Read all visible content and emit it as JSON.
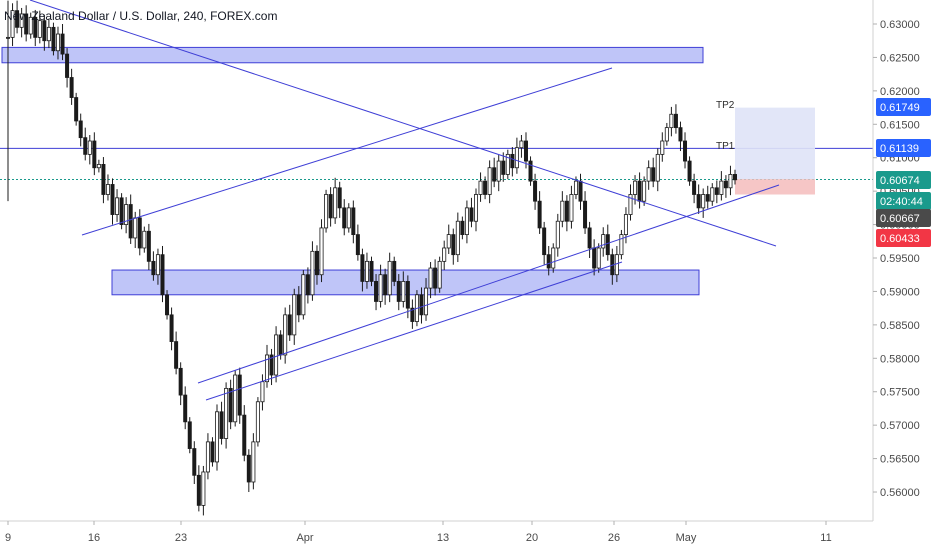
{
  "header": {
    "title": "New Zealand Dollar / U.S. Dollar, 240, FOREX.com"
  },
  "colors": {
    "up": "#1b1b1b",
    "down": "#1b1b1b",
    "trendline": "#3f3fd6",
    "zone_fill": "#a9b2f5",
    "zone_border": "#3f3fd6",
    "tp_fill": "#dfe3f7",
    "sl_fill": "#f5c0c0",
    "price_tag_blue": "#2962ff",
    "price_tag_dark": "#4a4a4a",
    "price_tag_red": "#f23645",
    "current_price_line": "#1a9a8c"
  },
  "chart_data": {
    "type": "candlestick",
    "title": "New Zealand Dollar / U.S. Dollar, 240, FOREX.com",
    "ylim": [
      0.5545,
      0.6342
    ],
    "y_ticks": [
      "0.63000",
      "0.62500",
      "0.62000",
      "0.61500",
      "0.61000",
      "0.60500",
      "0.60000",
      "0.59500",
      "0.59000",
      "0.58500",
      "0.58000",
      "0.57500",
      "0.57000",
      "0.56500",
      "0.56000"
    ],
    "x_ticks": [
      "9",
      "16",
      "23",
      "Apr",
      "13",
      "20",
      "26",
      "May",
      "11"
    ],
    "price_tags": [
      {
        "text": "0.61749",
        "value": 0.61749,
        "style": "blue"
      },
      {
        "text": "0.61139",
        "value": 0.61139,
        "style": "blue"
      },
      {
        "text": "0.60674",
        "value": 0.60674,
        "style": "teal"
      },
      {
        "text": "02:40:44",
        "value": 0.6041,
        "style": "teal"
      },
      {
        "text": "0.60667",
        "value": 0.60667,
        "style": "dark"
      },
      {
        "text": "0.60433",
        "value": 0.60433,
        "style": "red"
      }
    ],
    "annotations": [
      {
        "text": "TP2",
        "value": 0.6173
      },
      {
        "text": "TP1",
        "value": 0.6114
      }
    ],
    "closes": [
      0.628,
      0.632,
      0.6295,
      0.6315,
      0.6285,
      0.631,
      0.628,
      0.6305,
      0.6275,
      0.6295,
      0.626,
      0.6285,
      0.6255,
      0.622,
      0.619,
      0.6155,
      0.613,
      0.6105,
      0.6125,
      0.6085,
      0.609,
      0.6045,
      0.606,
      0.6015,
      0.604,
      0.6,
      0.603,
      0.598,
      0.601,
      0.5965,
      0.599,
      0.5945,
      0.5925,
      0.5955,
      0.5895,
      0.5865,
      0.5825,
      0.5785,
      0.5745,
      0.5705,
      0.5665,
      0.5625,
      0.558,
      0.563,
      0.5675,
      0.5645,
      0.572,
      0.568,
      0.5755,
      0.5705,
      0.5775,
      0.5715,
      0.5655,
      0.5615,
      0.5675,
      0.5735,
      0.5765,
      0.5805,
      0.5775,
      0.5835,
      0.5805,
      0.5865,
      0.5835,
      0.5895,
      0.5865,
      0.5925,
      0.5895,
      0.596,
      0.5925,
      0.5995,
      0.6045,
      0.601,
      0.6055,
      0.6025,
      0.5995,
      0.6025,
      0.5985,
      0.5955,
      0.5915,
      0.5945,
      0.5915,
      0.5885,
      0.5925,
      0.5895,
      0.5945,
      0.5915,
      0.5885,
      0.5915,
      0.5875,
      0.5855,
      0.5895,
      0.5865,
      0.5905,
      0.5935,
      0.5905,
      0.5945,
      0.5965,
      0.5985,
      0.5955,
      0.6005,
      0.5985,
      0.6025,
      0.6005,
      0.6045,
      0.6065,
      0.6045,
      0.6085,
      0.6065,
      0.6095,
      0.6075,
      0.6105,
      0.6085,
      0.6115,
      0.6125,
      0.6095,
      0.6065,
      0.6035,
      0.5995,
      0.5955,
      0.5935,
      0.5965,
      0.6005,
      0.6035,
      0.6005,
      0.6045,
      0.6065,
      0.6035,
      0.5995,
      0.5965,
      0.5935,
      0.5965,
      0.5985,
      0.5955,
      0.5925,
      0.5955,
      0.5985,
      0.6015,
      0.6045,
      0.6065,
      0.6035,
      0.6065,
      0.6085,
      0.6065,
      0.6105,
      0.6125,
      0.6145,
      0.6165,
      0.6145,
      0.6125,
      0.6095,
      0.6065,
      0.6045,
      0.6025,
      0.6045,
      0.6035,
      0.6055,
      0.6045,
      0.6065,
      0.6055,
      0.6075,
      0.6067
    ]
  }
}
